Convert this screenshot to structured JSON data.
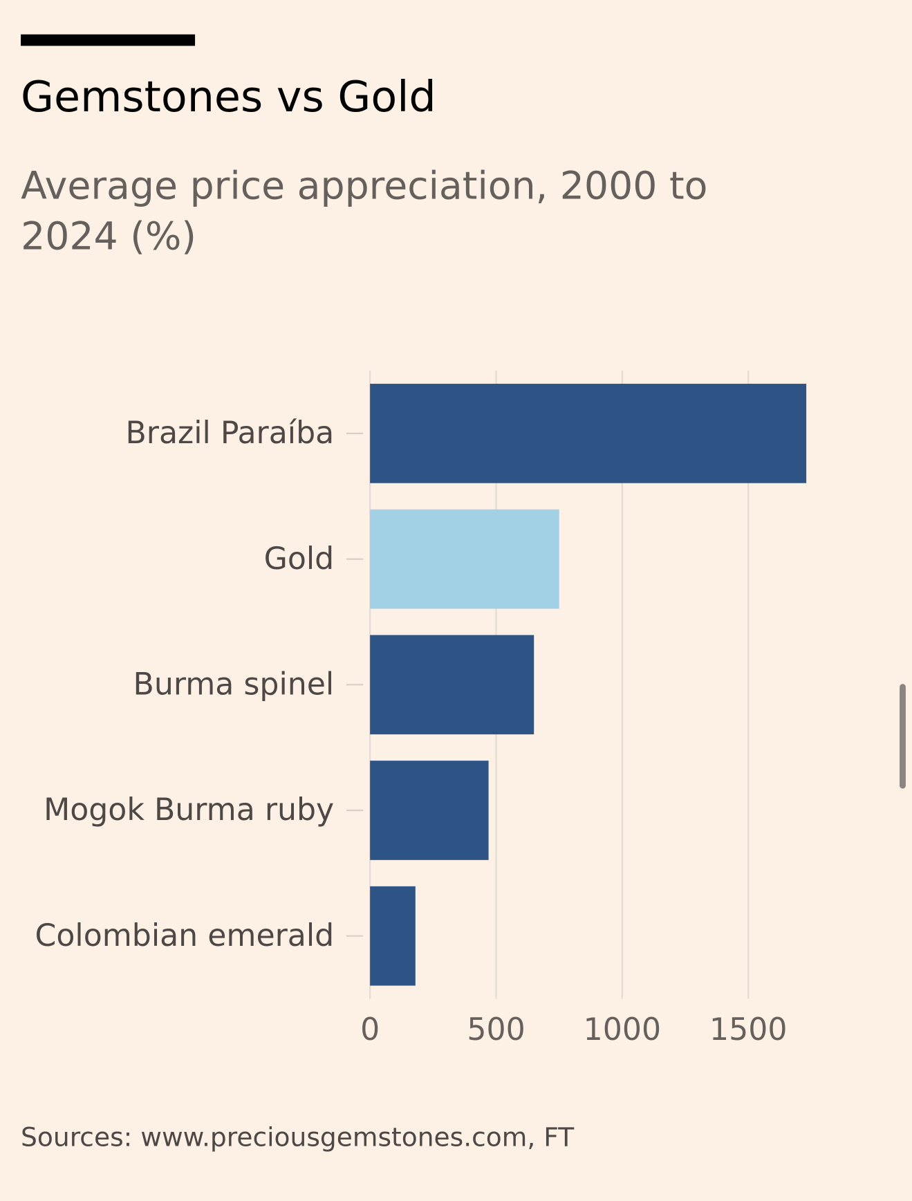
{
  "chart_data": {
    "type": "barh",
    "title": "Gemstones vs Gold",
    "subtitle": "Average price appreciation, 2000 to 2024 (%)",
    "source": "Sources: www.preciousgemstones.com, FT",
    "categories": [
      "Brazil Paraíba",
      "Gold",
      "Burma spinel",
      "Mogok Burma ruby",
      "Colombian emerald"
    ],
    "values": [
      1730,
      750,
      650,
      470,
      180
    ],
    "colors": [
      "#2e5486",
      "#a2d0e4",
      "#2e5486",
      "#2e5486",
      "#2e5486"
    ],
    "xlim": [
      0,
      1750
    ],
    "xticks": [
      0,
      500,
      1000,
      1500
    ],
    "grid": true
  }
}
